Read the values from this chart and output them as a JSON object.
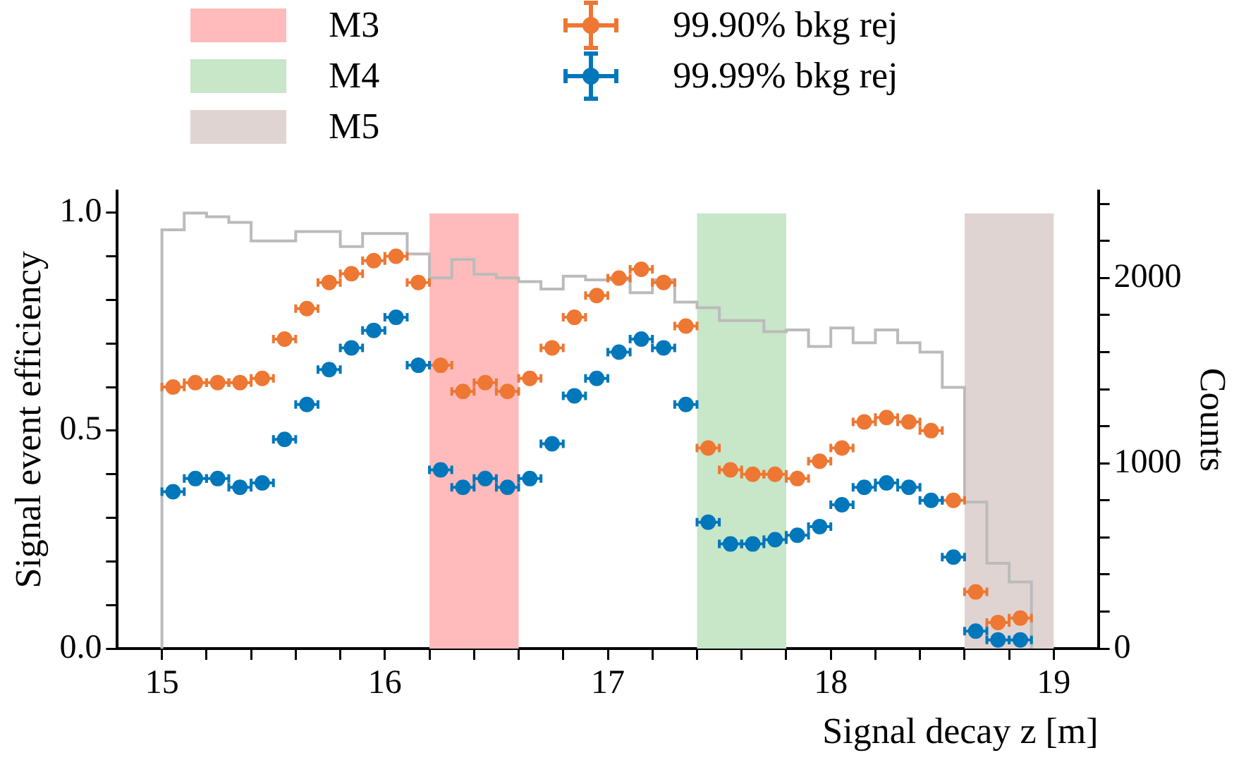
{
  "chart_data": {
    "type": "scatter",
    "xlabel": "Signal decay z [m]",
    "ylabel": "Signal event efficiency",
    "y2label": "Counts",
    "x": [
      15.05,
      15.15,
      15.25,
      15.35,
      15.45,
      15.55,
      15.65,
      15.75,
      15.85,
      15.95,
      16.05,
      16.15,
      16.25,
      16.35,
      16.45,
      16.55,
      16.65,
      16.75,
      16.85,
      16.95,
      17.05,
      17.15,
      17.25,
      17.35,
      17.45,
      17.55,
      17.65,
      17.75,
      17.85,
      17.95,
      18.05,
      18.15,
      18.25,
      18.35,
      18.45,
      18.55,
      18.65,
      18.75,
      18.85
    ],
    "series": [
      {
        "type": "histogram",
        "axis": "y2",
        "color": "#bbbbbb",
        "bins": [
          15.0,
          15.1,
          15.2,
          15.3,
          15.4,
          15.5,
          15.6,
          15.7,
          15.8,
          15.9,
          16.0,
          16.1,
          16.2,
          16.3,
          16.4,
          16.5,
          16.6,
          16.7,
          16.8,
          16.9,
          17.0,
          17.1,
          17.2,
          17.3,
          17.4,
          17.5,
          17.6,
          17.7,
          17.8,
          17.9,
          18.0,
          18.1,
          18.2,
          18.3,
          18.4,
          18.5,
          18.6,
          18.7,
          18.8,
          18.9
        ],
        "values": [
          2260,
          2350,
          2330,
          2300,
          2200,
          2200,
          2250,
          2250,
          2170,
          2240,
          2240,
          2130,
          2000,
          2100,
          2020,
          2000,
          1980,
          1940,
          2010,
          1990,
          1990,
          1920,
          1990,
          1870,
          1840,
          1770,
          1770,
          1710,
          1720,
          1630,
          1730,
          1650,
          1720,
          1650,
          1600,
          1410,
          790,
          460,
          360
        ]
      },
      {
        "name": "99.90% bkg rej",
        "color": "#ee7733",
        "values": [
          0.6,
          0.61,
          0.61,
          0.61,
          0.62,
          0.71,
          0.78,
          0.84,
          0.86,
          0.89,
          0.9,
          0.84,
          0.65,
          0.59,
          0.61,
          0.59,
          0.62,
          0.69,
          0.76,
          0.81,
          0.85,
          0.87,
          0.84,
          0.74,
          0.46,
          0.41,
          0.4,
          0.4,
          0.39,
          0.43,
          0.46,
          0.52,
          0.53,
          0.52,
          0.5,
          0.34,
          0.13,
          0.06,
          0.07
        ],
        "xerrors": [
          0.05,
          0.05,
          0.05,
          0.05,
          0.05,
          0.05,
          0.05,
          0.05,
          0.05,
          0.05,
          0.05,
          0.05,
          0.05,
          0.05,
          0.05,
          0.05,
          0.05,
          0.05,
          0.05,
          0.05,
          0.05,
          0.05,
          0.05,
          0.05,
          0.05,
          0.05,
          0.05,
          0.05,
          0.05,
          0.05,
          0.05,
          0.05,
          0.05,
          0.05,
          0.05,
          0.05,
          0.05,
          0.05,
          0.05
        ]
      },
      {
        "name": "99.99% bkg rej",
        "color": "#0077bb",
        "values": [
          0.36,
          0.39,
          0.39,
          0.37,
          0.38,
          0.48,
          0.56,
          0.64,
          0.69,
          0.73,
          0.76,
          0.65,
          0.41,
          0.37,
          0.39,
          0.37,
          0.39,
          0.47,
          0.58,
          0.62,
          0.68,
          0.71,
          0.69,
          0.56,
          0.29,
          0.24,
          0.24,
          0.25,
          0.26,
          0.28,
          0.33,
          0.37,
          0.38,
          0.37,
          0.34,
          0.21,
          0.04,
          0.02,
          0.02
        ],
        "xerrors": [
          0.05,
          0.05,
          0.05,
          0.05,
          0.05,
          0.05,
          0.05,
          0.05,
          0.05,
          0.05,
          0.05,
          0.05,
          0.05,
          0.05,
          0.05,
          0.05,
          0.05,
          0.05,
          0.05,
          0.05,
          0.05,
          0.05,
          0.05,
          0.05,
          0.05,
          0.05,
          0.05,
          0.05,
          0.05,
          0.05,
          0.05,
          0.05,
          0.05,
          0.05,
          0.05,
          0.05,
          0.05,
          0.05,
          0.05
        ]
      }
    ],
    "bands": [
      {
        "axis": "x",
        "from": 16.2,
        "to": 16.6,
        "label": "M3",
        "color": "#ffbbbb"
      },
      {
        "axis": "x",
        "from": 17.4,
        "to": 17.8,
        "label": "M4",
        "color": "#c8e6c8"
      },
      {
        "axis": "x",
        "from": 18.6,
        "to": 19.0,
        "label": "M5",
        "color": "#e0d4d2"
      }
    ],
    "xlim": [
      14.8,
      19.2
    ],
    "xticks": [
      15,
      {
        "value": 15.2,
        "label": null
      },
      {
        "value": 15.4,
        "label": null
      },
      {
        "value": 15.6,
        "label": null
      },
      {
        "value": 15.8,
        "label": null
      },
      16,
      {
        "value": 16.2,
        "label": null
      },
      {
        "value": 16.4,
        "label": null
      },
      {
        "value": 16.6,
        "label": null
      },
      {
        "value": 16.8,
        "label": null
      },
      17,
      {
        "value": 17.2,
        "label": null
      },
      {
        "value": 17.4,
        "label": null
      },
      {
        "value": 17.6,
        "label": null
      },
      {
        "value": 17.8,
        "label": null
      },
      18,
      {
        "value": 18.2,
        "label": null
      },
      {
        "value": 18.4,
        "label": null
      },
      {
        "value": 18.6,
        "label": null
      },
      {
        "value": 18.8,
        "label": null
      },
      19
    ],
    "ylim": [
      0,
      1.05
    ],
    "yticks": [
      {
        "value": 0,
        "label": "0.0"
      },
      {
        "value": 0.1,
        "label": null
      },
      {
        "value": 0.2,
        "label": null
      },
      {
        "value": 0.3,
        "label": null
      },
      {
        "value": 0.4,
        "label": null
      },
      {
        "value": 0.5,
        "label": "0.5"
      },
      {
        "value": 0.6,
        "label": null
      },
      {
        "value": 0.7,
        "label": null
      },
      {
        "value": 0.8,
        "label": null
      },
      {
        "value": 0.9,
        "label": null
      },
      {
        "value": 1.0,
        "label": "1.0"
      }
    ],
    "y2lim": [
      0,
      2470
    ],
    "y2ticks": [
      0,
      {
        "value": 200,
        "label": null
      },
      {
        "value": 400,
        "label": null
      },
      {
        "value": 600,
        "label": null
      },
      {
        "value": 800,
        "label": null
      },
      1000,
      {
        "value": 1200,
        "label": null
      },
      {
        "value": 1400,
        "label": null
      },
      {
        "value": 1600,
        "label": null
      },
      {
        "value": 1800,
        "label": null
      },
      2000,
      {
        "value": 2200,
        "label": null
      },
      {
        "value": 2400,
        "label": null
      }
    ],
    "marker": "circle",
    "grid": false,
    "legend": "top"
  }
}
